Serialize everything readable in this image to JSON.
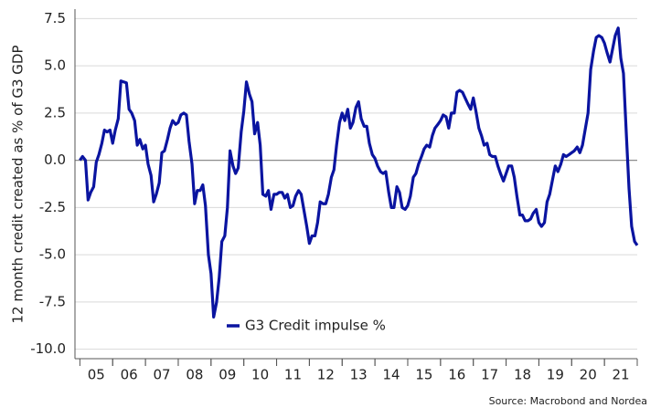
{
  "chart_data": {
    "type": "line",
    "y_label": "12 month credit created as % of G3 GDP",
    "source": "Source: Macrobond and Nordea",
    "legend": "lower-center",
    "grid": true,
    "ylim": [
      -10.5,
      8
    ],
    "yticks": [
      {
        "value": -10,
        "label": "-10.0"
      },
      -7.5,
      {
        "value": -5,
        "label": "-5.0"
      },
      -2.5,
      {
        "value": 0,
        "label": "0.0"
      },
      2.5,
      {
        "value": 5,
        "label": "5.0"
      },
      7.5
    ],
    "xlim": [
      2004.85,
      2022
    ],
    "xticks": [
      {
        "value": 2005.5,
        "label": "05"
      },
      {
        "value": 2006.5,
        "label": "06"
      },
      {
        "value": 2007.5,
        "label": "07"
      },
      {
        "value": 2008.5,
        "label": "08"
      },
      {
        "value": 2009.5,
        "label": "09"
      },
      {
        "value": 2010.5,
        "label": "10"
      },
      {
        "value": 2011.5,
        "label": "11"
      },
      {
        "value": 2012.5,
        "label": "12"
      },
      {
        "value": 2013.5,
        "label": "13"
      },
      {
        "value": 2014.5,
        "label": "14"
      },
      {
        "value": 2015.5,
        "label": "15"
      },
      {
        "value": 2016.5,
        "label": "16"
      },
      {
        "value": 2017.5,
        "label": "17"
      },
      {
        "value": 2018.5,
        "label": "18"
      },
      {
        "value": 2019.5,
        "label": "19"
      },
      {
        "value": 2020.5,
        "label": "20"
      },
      {
        "value": 2021.5,
        "label": "21"
      }
    ],
    "x": [
      2005.0,
      2005.08,
      2005.17,
      2005.25,
      2005.33,
      2005.42,
      2005.5,
      2005.58,
      2005.67,
      2005.75,
      2005.83,
      2005.92,
      2006.0,
      2006.08,
      2006.17,
      2006.25,
      2006.33,
      2006.42,
      2006.5,
      2006.58,
      2006.67,
      2006.75,
      2006.83,
      2006.92,
      2007.0,
      2007.08,
      2007.17,
      2007.25,
      2007.33,
      2007.42,
      2007.5,
      2007.58,
      2007.67,
      2007.75,
      2007.83,
      2007.92,
      2008.0,
      2008.08,
      2008.17,
      2008.25,
      2008.33,
      2008.42,
      2008.5,
      2008.58,
      2008.67,
      2008.75,
      2008.83,
      2008.92,
      2009.0,
      2009.08,
      2009.17,
      2009.25,
      2009.33,
      2009.42,
      2009.5,
      2009.58,
      2009.67,
      2009.75,
      2009.83,
      2009.92,
      2010.0,
      2010.08,
      2010.17,
      2010.25,
      2010.33,
      2010.42,
      2010.5,
      2010.58,
      2010.67,
      2010.75,
      2010.83,
      2010.92,
      2011.0,
      2011.08,
      2011.17,
      2011.25,
      2011.33,
      2011.42,
      2011.5,
      2011.58,
      2011.67,
      2011.75,
      2011.83,
      2011.92,
      2012.0,
      2012.08,
      2012.17,
      2012.25,
      2012.33,
      2012.42,
      2012.5,
      2012.58,
      2012.67,
      2012.75,
      2012.83,
      2012.92,
      2013.0,
      2013.08,
      2013.17,
      2013.25,
      2013.33,
      2013.42,
      2013.5,
      2013.58,
      2013.67,
      2013.75,
      2013.83,
      2013.92,
      2014.0,
      2014.08,
      2014.17,
      2014.25,
      2014.33,
      2014.42,
      2014.5,
      2014.58,
      2014.67,
      2014.75,
      2014.83,
      2014.92,
      2015.0,
      2015.08,
      2015.17,
      2015.25,
      2015.33,
      2015.42,
      2015.5,
      2015.58,
      2015.67,
      2015.75,
      2015.83,
      2015.92,
      2016.0,
      2016.08,
      2016.17,
      2016.25,
      2016.33,
      2016.42,
      2016.5,
      2016.58,
      2016.67,
      2016.75,
      2016.83,
      2016.92,
      2017.0,
      2017.08,
      2017.17,
      2017.25,
      2017.33,
      2017.42,
      2017.5,
      2017.58,
      2017.67,
      2017.75,
      2017.83,
      2017.92,
      2018.0,
      2018.08,
      2018.17,
      2018.25,
      2018.33,
      2018.42,
      2018.5,
      2018.58,
      2018.67,
      2018.75,
      2018.83,
      2018.92,
      2019.0,
      2019.08,
      2019.17,
      2019.25,
      2019.33,
      2019.42,
      2019.5,
      2019.58,
      2019.67,
      2019.75,
      2019.83,
      2019.92,
      2020.0,
      2020.08,
      2020.17,
      2020.25,
      2020.33,
      2020.42,
      2020.5,
      2020.58,
      2020.67,
      2020.75,
      2020.83,
      2020.92,
      2021.0,
      2021.08,
      2021.17,
      2021.25,
      2021.33,
      2021.42,
      2021.5,
      2021.58,
      2021.67,
      2021.75,
      2021.83,
      2021.92,
      2022.0
    ],
    "series": [
      {
        "name": "G3 Credit impulse %",
        "color": "#0a14a0",
        "values": [
          0,
          0.2,
          0,
          -2.1,
          -1.7,
          -1.4,
          -0.1,
          0.3,
          0.9,
          1.6,
          1.5,
          1.6,
          0.9,
          1.6,
          2.2,
          4.2,
          4.15,
          4.1,
          2.7,
          2.5,
          2.1,
          0.8,
          1.1,
          0.6,
          0.8,
          -0.2,
          -0.8,
          -2.2,
          -1.8,
          -1.2,
          0.4,
          0.5,
          1.1,
          1.7,
          2.1,
          1.9,
          2.0,
          2.4,
          2.5,
          2.4,
          1.0,
          -0.2,
          -2.3,
          -1.6,
          -1.6,
          -1.3,
          -2.4,
          -5.0,
          -6.0,
          -8.3,
          -7.5,
          -6.2,
          -4.3,
          -4.0,
          -2.5,
          0.5,
          -0.3,
          -0.7,
          -0.4,
          1.5,
          2.6,
          4.15,
          3.5,
          3.1,
          1.4,
          2.0,
          0.8,
          -1.8,
          -1.9,
          -1.6,
          -2.6,
          -1.8,
          -1.8,
          -1.7,
          -1.7,
          -2.0,
          -1.8,
          -2.5,
          -2.4,
          -1.9,
          -1.6,
          -1.8,
          -2.6,
          -3.5,
          -4.4,
          -4.0,
          -4.0,
          -3.3,
          -2.2,
          -2.3,
          -2.3,
          -1.8,
          -0.9,
          -0.5,
          0.8,
          2.0,
          2.5,
          2.1,
          2.7,
          1.7,
          2.0,
          2.8,
          3.1,
          2.2,
          1.8,
          1.8,
          0.9,
          0.3,
          0.1,
          -0.3,
          -0.6,
          -0.7,
          -0.6,
          -1.7,
          -2.5,
          -2.5,
          -1.4,
          -1.7,
          -2.5,
          -2.6,
          -2.4,
          -1.9,
          -0.9,
          -0.7,
          -0.2,
          0.2,
          0.6,
          0.8,
          0.7,
          1.3,
          1.7,
          1.9,
          2.1,
          2.4,
          2.3,
          1.7,
          2.5,
          2.5,
          3.6,
          3.7,
          3.6,
          3.3,
          3.0,
          2.7,
          3.3,
          2.6,
          1.7,
          1.3,
          0.8,
          0.9,
          0.3,
          0.2,
          0.2,
          -0.3,
          -0.7,
          -1.1,
          -0.7,
          -0.3,
          -0.3,
          -0.9,
          -1.9,
          -2.9,
          -2.9,
          -3.2,
          -3.2,
          -3.1,
          -2.8,
          -2.6,
          -3.3,
          -3.5,
          -3.3,
          -2.2,
          -1.8,
          -1.0,
          -0.3,
          -0.6,
          -0.2,
          0.3,
          0.2,
          0.3,
          0.4,
          0.5,
          0.7,
          0.4,
          0.8,
          1.7,
          2.5,
          4.8,
          5.8,
          6.5,
          6.6,
          6.5,
          6.2,
          5.7,
          5.2,
          5.9,
          6.6,
          7.0,
          5.4,
          4.6,
          1.3,
          -1.5,
          -3.5,
          -4.3,
          -4.5
        ]
      }
    ]
  }
}
